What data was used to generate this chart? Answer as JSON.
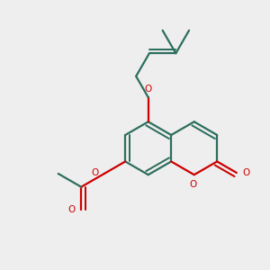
{
  "bg_color": "#eeeeee",
  "bond_color": "#2d6e5e",
  "oxygen_color": "#cc0000",
  "line_width": 1.6,
  "figsize": [
    3.0,
    3.0
  ],
  "dpi": 100,
  "xlim": [
    0,
    10
  ],
  "ylim": [
    0,
    10
  ]
}
